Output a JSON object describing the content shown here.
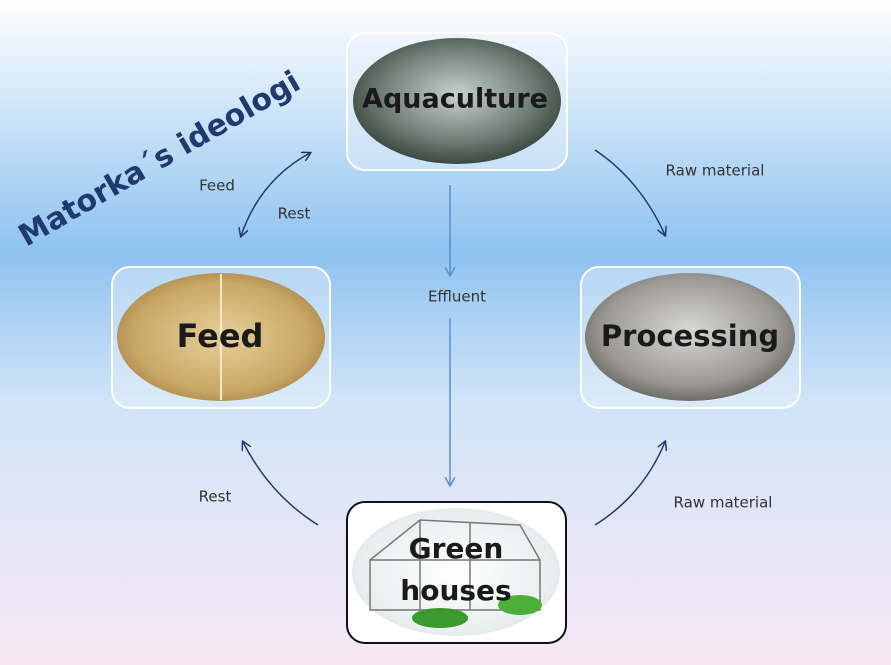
{
  "title": "Matorka´s ideologi",
  "nodes": [
    {
      "lines": [
        "Aquaculture"
      ]
    },
    {
      "lines": [
        "Feed"
      ]
    },
    {
      "lines": [
        "Processing"
      ]
    },
    {
      "lines": [
        "Green",
        "houses"
      ]
    }
  ],
  "edges": [
    {
      "label": "Feed"
    },
    {
      "label": "Rest"
    },
    {
      "label": "Raw material"
    },
    {
      "label": "Effluent"
    },
    {
      "label": "Rest"
    },
    {
      "label": "Raw material"
    }
  ]
}
